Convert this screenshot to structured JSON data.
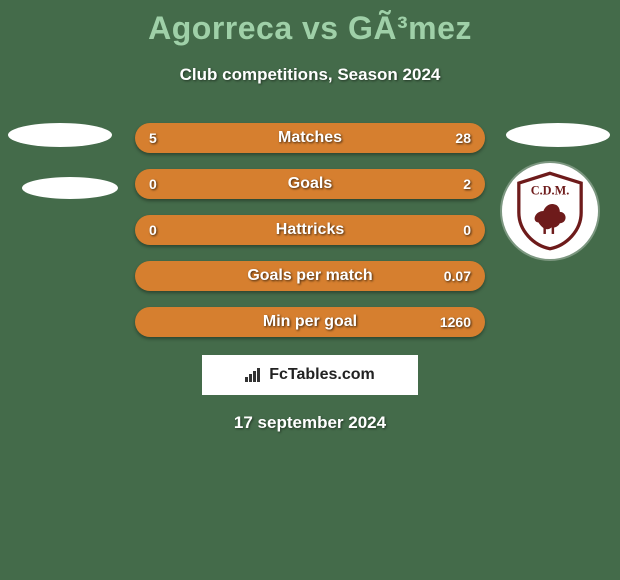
{
  "colors": {
    "background": "#446b4a",
    "title": "#9fd0a8",
    "subtitle": "#ffffff",
    "date": "#ffffff",
    "bar_base": "#d67f2f",
    "bar_alt": "#3a5f40",
    "avatar": "#ffffff",
    "logo_bg": "#ffffff",
    "logo_fg": "#222222"
  },
  "header": {
    "title": "Agorreca vs GÃ³mez",
    "subtitle": "Club competitions, Season 2024"
  },
  "bars": [
    {
      "label": "Matches",
      "left": "5",
      "right": "28",
      "left_pct": 15,
      "right_pct": 85
    },
    {
      "label": "Goals",
      "left": "0",
      "right": "2",
      "left_pct": 0,
      "right_pct": 100
    },
    {
      "label": "Hattricks",
      "left": "0",
      "right": "0",
      "left_pct": 50,
      "right_pct": 50
    },
    {
      "label": "Goals per match",
      "left": "",
      "right": "0.07",
      "left_pct": 0,
      "right_pct": 100
    },
    {
      "label": "Min per goal",
      "left": "",
      "right": "1260",
      "left_pct": 0,
      "right_pct": 100
    }
  ],
  "footer": {
    "brand": "FcTables.com",
    "date": "17 september 2024"
  }
}
